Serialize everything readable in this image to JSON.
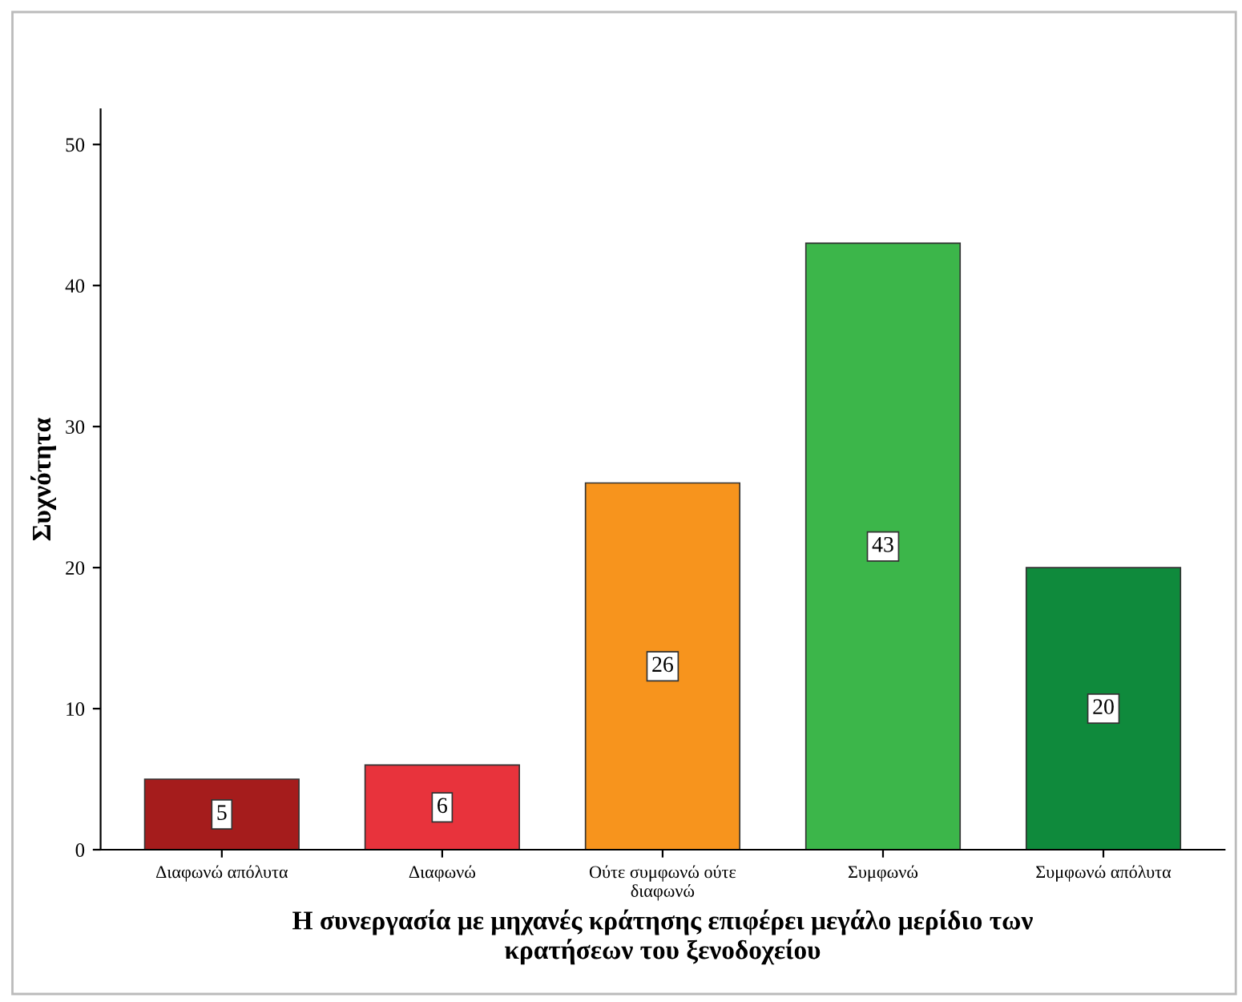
{
  "chart_data": {
    "type": "bar",
    "categories": [
      "Διαφωνώ απόλυτα",
      "Διαφωνώ",
      "Ούτε συμφωνώ ούτε\nδιαφωνώ",
      "Συμφωνώ",
      "Συμφωνώ απόλυτα"
    ],
    "values": [
      5,
      6,
      26,
      43,
      20
    ],
    "colors": [
      "#a51c1c",
      "#e8333c",
      "#f7941d",
      "#3cb64a",
      "#0f8a3c"
    ],
    "xlabel": "Η συνεργασία με μηχανές κράτησης επιφέρει μεγάλο μερίδιο των\nκρατήσεων του ξενοδοχείου",
    "ylabel": "Συχνότητα",
    "ylim": [
      0,
      52.5
    ],
    "yticks": [
      0,
      10,
      20,
      30,
      40,
      50
    ],
    "data_labels": true,
    "grid": false,
    "legend": false
  }
}
